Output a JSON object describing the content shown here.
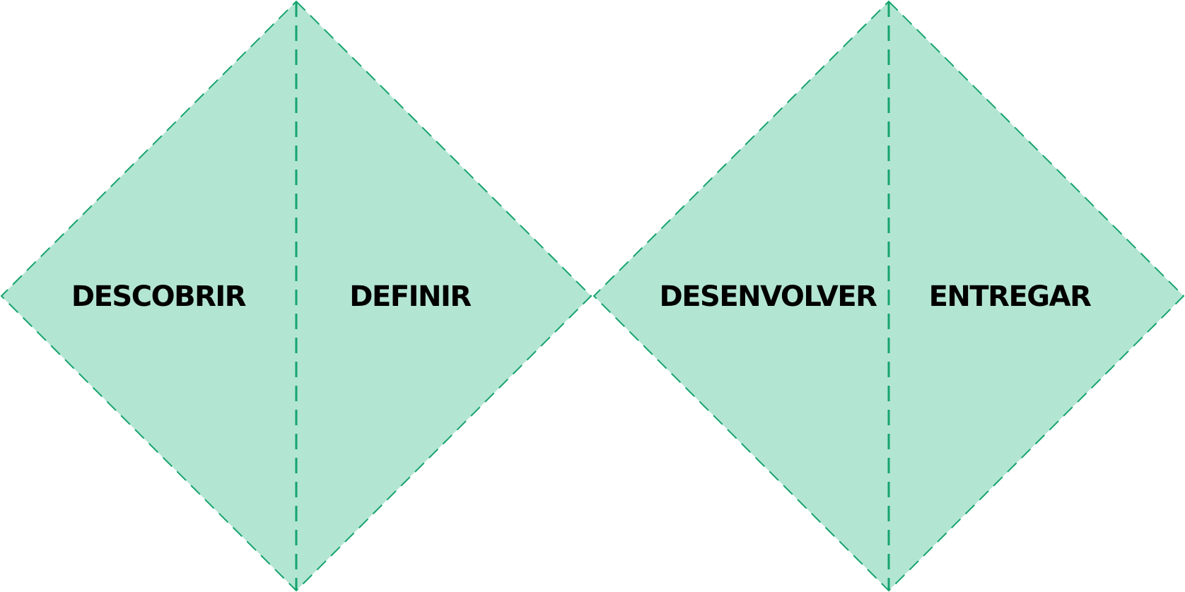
{
  "diagram": {
    "colors": {
      "fill": "#b3e5d3",
      "stroke": "#15a46e",
      "text": "#000000",
      "background": "#ffffff"
    },
    "phases": [
      {
        "label": "DESCOBRIR"
      },
      {
        "label": "DEFINIR"
      },
      {
        "label": "DESENVOLVER"
      },
      {
        "label": "ENTREGAR"
      }
    ]
  }
}
